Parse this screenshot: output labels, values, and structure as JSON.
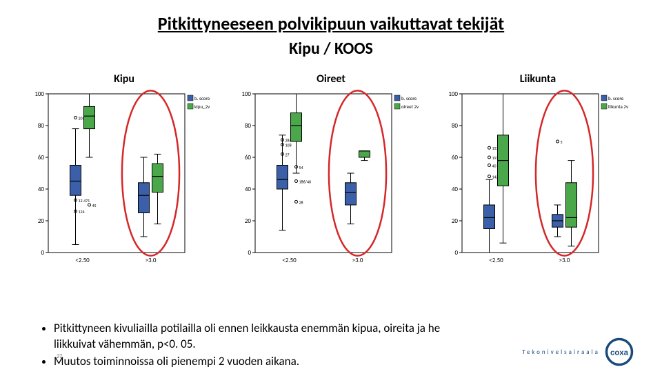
{
  "slide": {
    "title": "Pitkittyneeseen polvikipuun vaikuttavat tekijät",
    "subtitle": "Kipu / KOOS"
  },
  "colors": {
    "series_a": "#3b5fa8",
    "series_b": "#4aa84a",
    "highlight_ring": "#d62728",
    "axis": "#000000",
    "grid": "#e6e6e6",
    "bg": "#ffffff"
  },
  "axis": {
    "min": 0,
    "max": 100,
    "ticks": [
      0,
      20,
      40,
      60,
      80,
      100
    ]
  },
  "legend": {
    "a": "b. score",
    "b_suffix": "2v"
  },
  "panels": [
    {
      "key": "kipu",
      "title": "Kipu",
      "xcats": [
        "<2.50",
        ">3.0"
      ],
      "legend_b": "kipu_2v",
      "groups": [
        {
          "xcat": 0,
          "boxes": [
            {
              "series": "a",
              "min": 5,
              "q1": 36,
              "median": 45,
              "q3": 55,
              "max": 78,
              "outliers": [
                {
                  "v": 85,
                  "label": "205"
                },
                {
                  "v": 33,
                  "label": "12.471"
                },
                {
                  "v": 26,
                  "label": "124"
                }
              ]
            },
            {
              "series": "b",
              "min": 60,
              "q1": 78,
              "median": 86,
              "q3": 92,
              "max": 100,
              "outliers": [
                {
                  "v": 30,
                  "label": "45"
                }
              ]
            }
          ],
          "highlight": false
        },
        {
          "xcat": 1,
          "boxes": [
            {
              "series": "a",
              "min": 10,
              "q1": 25,
              "median": 36,
              "q3": 44,
              "max": 60,
              "outliers": []
            },
            {
              "series": "b",
              "min": 18,
              "q1": 38,
              "median": 48,
              "q3": 56,
              "max": 62,
              "outliers": []
            }
          ],
          "highlight": true
        }
      ]
    },
    {
      "key": "oireet",
      "title": "Oireet",
      "xcats": [
        "<2.50",
        ">3.0"
      ],
      "legend_b": "oireet 2v",
      "groups": [
        {
          "xcat": 0,
          "boxes": [
            {
              "series": "a",
              "min": 14,
              "q1": 40,
              "median": 46,
              "q3": 55,
              "max": 74,
              "outliers": [
                {
                  "v": 68,
                  "label": "108"
                },
                {
                  "v": 71,
                  "label": "284"
                },
                {
                  "v": 62,
                  "label": "27"
                }
              ]
            },
            {
              "series": "b",
              "min": 50,
              "q1": 70,
              "median": 80,
              "q3": 88,
              "max": 100,
              "outliers": [
                {
                  "v": 54,
                  "label": "54"
                },
                {
                  "v": 45,
                  "label": "186/40"
                },
                {
                  "v": 32,
                  "label": "28"
                }
              ]
            }
          ],
          "highlight": false
        },
        {
          "xcat": 1,
          "boxes": [
            {
              "series": "a",
              "min": 18,
              "q1": 30,
              "median": 38,
              "q3": 44,
              "max": 50,
              "outliers": []
            },
            {
              "series": "b",
              "min": 58,
              "q1": 60,
              "median": 64,
              "q3": 64,
              "max": 64,
              "outliers": []
            }
          ],
          "highlight": true
        }
      ]
    },
    {
      "key": "liikunta",
      "title": "Liikunta",
      "xcats": [
        "<2.50",
        ">3.0"
      ],
      "legend_b": "liikunta 2v",
      "groups": [
        {
          "xcat": 0,
          "boxes": [
            {
              "series": "a",
              "min": 0,
              "q1": 15,
              "median": 22,
              "q3": 30,
              "max": 46,
              "outliers": [
                {
                  "v": 66,
                  "label": "153"
                },
                {
                  "v": 60,
                  "label": "197"
                },
                {
                  "v": 55,
                  "label": "40"
                },
                {
                  "v": 48,
                  "label": "142"
                }
              ]
            },
            {
              "series": "b",
              "min": 6,
              "q1": 42,
              "median": 58,
              "q3": 74,
              "max": 100,
              "outliers": []
            }
          ],
          "highlight": false
        },
        {
          "xcat": 1,
          "boxes": [
            {
              "series": "a",
              "min": 10,
              "q1": 16,
              "median": 20,
              "q3": 24,
              "max": 30,
              "outliers": [
                {
                  "v": 70,
                  "label": "5"
                }
              ]
            },
            {
              "series": "b",
              "min": 4,
              "q1": 16,
              "median": 22,
              "q3": 44,
              "max": 58,
              "outliers": []
            }
          ],
          "highlight": true
        }
      ]
    }
  ],
  "bullets": [
    "Pitkittyneen kivuliailla potilailla oli ennen leikkausta enemmän kipua, oireita ja he liikkuivat vähemmän, p<0. 05.",
    "Muutos toiminnoissa oli pienempi 2 vuoden aikana."
  ],
  "page_number": "27",
  "logo": {
    "text": "Tekonivelsairaala",
    "brand": "COXA",
    "brand_color": "#1a4a7a"
  }
}
